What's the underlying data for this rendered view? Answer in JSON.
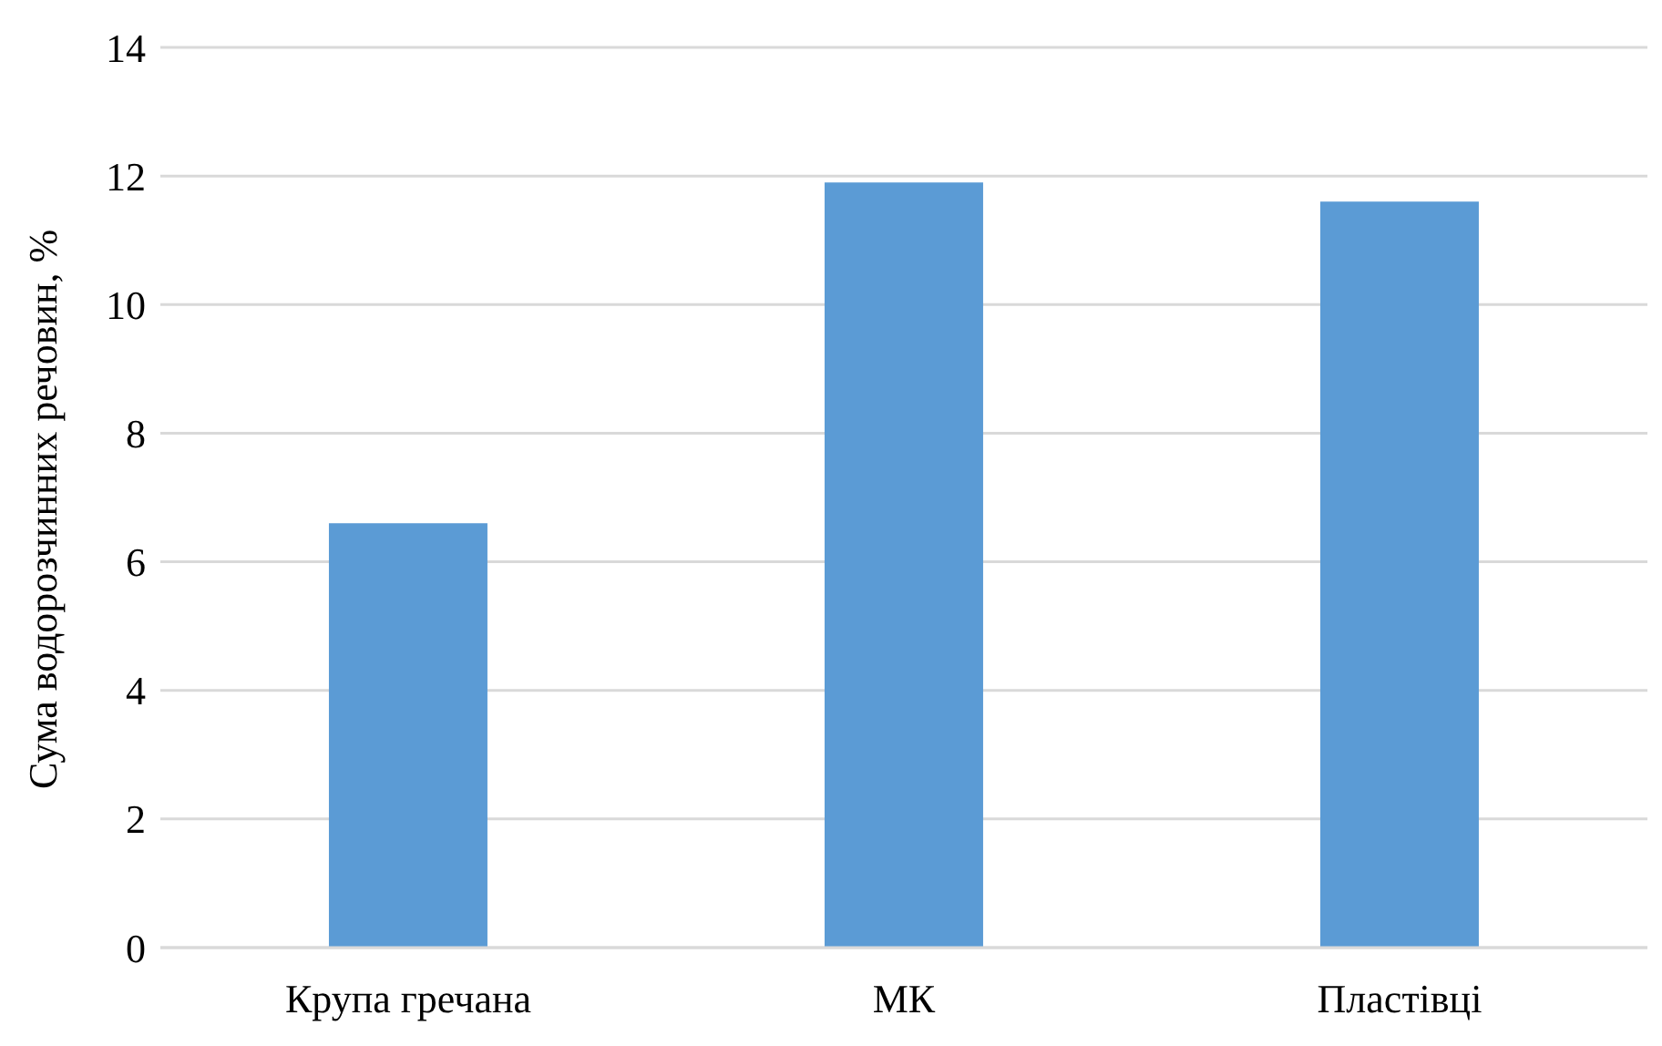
{
  "chart_data": {
    "type": "bar",
    "ylabel": "Сума водорозчинних речовин, %",
    "categories": [
      "Крупа гречана",
      "МК",
      "Пластівці"
    ],
    "values": [
      6.6,
      11.9,
      11.6
    ],
    "color": "#5b9bd5",
    "ylim": [
      0,
      14
    ],
    "yticks": [
      0,
      2,
      4,
      6,
      8,
      10,
      12,
      14
    ],
    "grid": "y"
  }
}
